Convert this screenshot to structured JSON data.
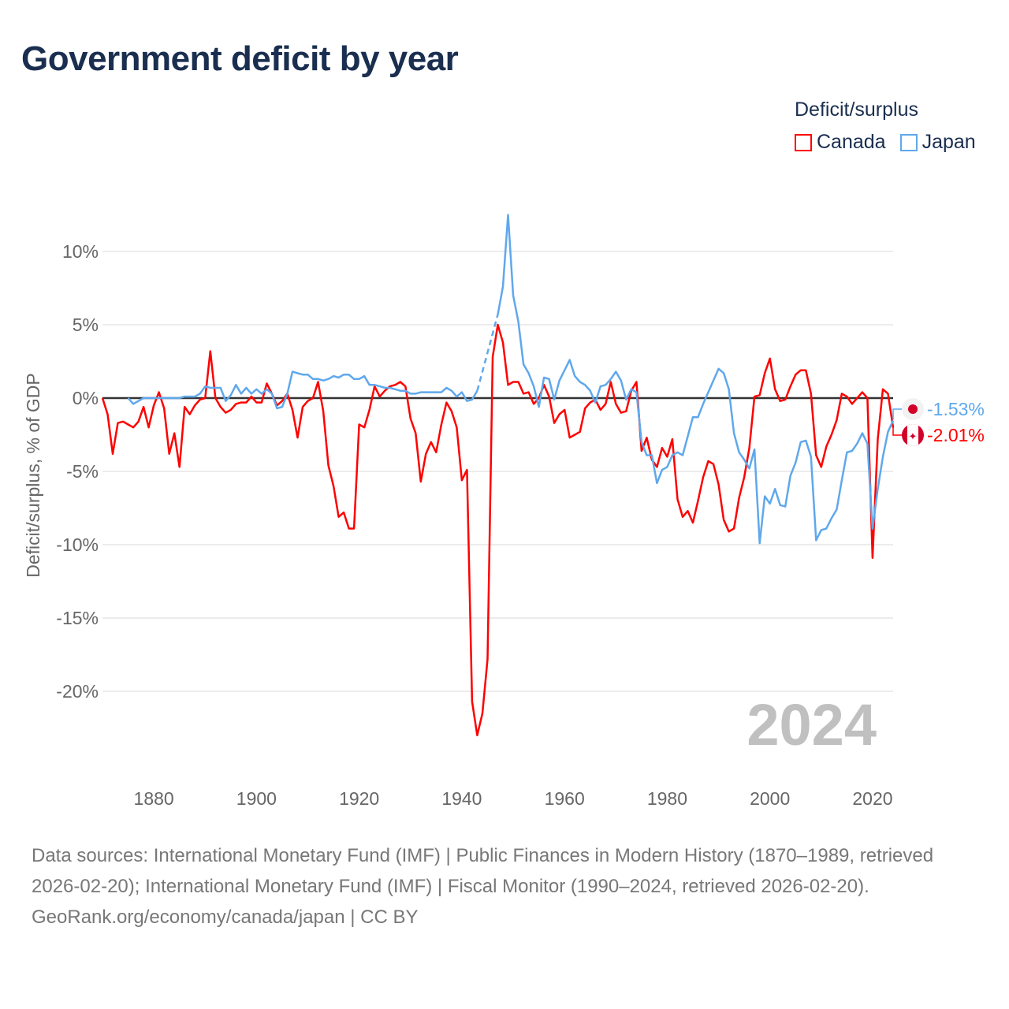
{
  "title": "Government deficit by year",
  "legend": {
    "title": "Deficit/surplus",
    "items": [
      {
        "label": "Canada",
        "color": "#ff0000"
      },
      {
        "label": "Japan",
        "color": "#5fa8ec"
      }
    ]
  },
  "year_label": "2024",
  "end_labels": {
    "japan": "-1.53%",
    "canada": "-2.01%"
  },
  "footer": {
    "sources": "Data sources: International Monetary Fund (IMF) | Public Finances in Modern History (1870–1989, retrieved 2026-02-20); International Monetary Fund (IMF) | Fiscal Monitor (1990–2024, retrieved 2026-02-20).",
    "credit": "GeoRank.org/economy/canada/japan | CC BY"
  },
  "chart_data": {
    "type": "line",
    "title": "Government deficit by year",
    "xlabel": "",
    "ylabel": "Deficit/surplus, % of GDP",
    "xlim": [
      1870,
      2024
    ],
    "ylim": [
      -25,
      13
    ],
    "x_ticks": [
      1880,
      1900,
      1920,
      1940,
      1960,
      1980,
      2000,
      2020
    ],
    "x_tick_labels": [
      "1880",
      "1900",
      "1920",
      "1940",
      "1960",
      "1980",
      "2000",
      "2020"
    ],
    "y_ticks": [
      10,
      5,
      0,
      -5,
      -10,
      -15,
      -20
    ],
    "y_tick_labels": [
      "10%",
      "5%",
      "0%",
      "-5%",
      "-10%",
      "-15%",
      "-20%"
    ],
    "grid": true,
    "legend_position": "top-right",
    "start_year": 1870,
    "series": [
      {
        "name": "Canada",
        "color": "#ff0000",
        "values": [
          0,
          -1.1,
          -3.8,
          -1.7,
          -1.6,
          -1.8,
          -2.0,
          -1.6,
          -0.6,
          -2.0,
          -0.5,
          0.4,
          -0.7,
          -3.8,
          -2.4,
          -4.7,
          -0.6,
          -1.1,
          -0.5,
          -0.1,
          0,
          3.2,
          0,
          -0.6,
          -1.0,
          -0.8,
          -0.4,
          -0.3,
          -0.3,
          0.1,
          -0.3,
          -0.3,
          1.0,
          0.3,
          -0.5,
          -0.2,
          0.3,
          -0.8,
          -2.7,
          -0.6,
          -0.2,
          0,
          1.1,
          -0.9,
          -4.6,
          -6.0,
          -8.1,
          -7.8,
          -8.9,
          -8.9,
          -1.8,
          -2.0,
          -0.8,
          0.8,
          0.1,
          0.5,
          0.8,
          0.9,
          1.1,
          0.8,
          -1.4,
          -2.4,
          -5.7,
          -3.8,
          -3.0,
          -3.7,
          -1.8,
          -0.3,
          -0.9,
          -2.0,
          -5.6,
          -4.9,
          -20.7,
          -23.0,
          -21.5,
          -17.8,
          2.8,
          5.0,
          3.8,
          0.9,
          1.1,
          1.1,
          0.3,
          0.4,
          -0.4,
          0,
          0.9,
          0.1,
          -1.7,
          -1.1,
          -0.8,
          -2.7,
          -2.5,
          -2.3,
          -0.7,
          -0.3,
          -0.1,
          -0.8,
          -0.4,
          1.1,
          -0.4,
          -1.0,
          -0.9,
          0.5,
          1.1,
          -3.6,
          -2.7,
          -4.2,
          -4.7,
          -3.4,
          -4.0,
          -2.8,
          -6.9,
          -8.1,
          -7.7,
          -8.5,
          -7.0,
          -5.4,
          -4.3,
          -4.5,
          -5.9,
          -8.3,
          -9.1,
          -8.9,
          -6.8,
          -5.4,
          -3.4,
          0.1,
          0.2,
          1.7,
          2.7,
          0.6,
          -0.2,
          -0.1,
          0.8,
          1.6,
          1.9,
          1.9,
          0.3,
          -3.9,
          -4.7,
          -3.3,
          -2.5,
          -1.5,
          0.3,
          0.1,
          -0.4,
          0,
          0.4,
          0.0,
          -10.9,
          -2.8,
          0.6,
          0.3,
          -2.01
        ]
      },
      {
        "name": "Japan",
        "color": "#5fa8ec",
        "values": [
          null,
          null,
          null,
          null,
          null,
          0,
          -0.4,
          -0.2,
          0,
          0,
          0,
          0,
          0,
          0,
          0,
          0,
          0.1,
          0.1,
          0.1,
          0.3,
          0.8,
          0.7,
          0.7,
          0.7,
          -0.2,
          0.2,
          0.9,
          0.3,
          0.7,
          0.3,
          0.6,
          0.3,
          0.6,
          0.3,
          -0.7,
          -0.6,
          0.3,
          1.8,
          1.7,
          1.6,
          1.6,
          1.3,
          1.3,
          1.2,
          1.3,
          1.5,
          1.4,
          1.6,
          1.6,
          1.3,
          1.3,
          1.5,
          0.9,
          0.9,
          0.8,
          0.7,
          0.7,
          0.6,
          0.5,
          0.5,
          0.3,
          0.3,
          0.4,
          0.4,
          0.4,
          0.4,
          0.4,
          0.7,
          0.5,
          0.1,
          0.4,
          -0.2,
          -0.1,
          0.5,
          null,
          null,
          null,
          5.7,
          7.6,
          12.5,
          7.0,
          5.2,
          2.3,
          1.7,
          0.8,
          -0.6,
          1.4,
          1.3,
          -0.1,
          1.2,
          1.9,
          2.6,
          1.5,
          1.1,
          0.9,
          0.5,
          -0.3,
          0.8,
          0.9,
          1.3,
          1.8,
          1.2,
          -0.1,
          0.6,
          0.4,
          -3.0,
          -3.9,
          -3.9,
          -5.8,
          -4.9,
          -4.7,
          -3.9,
          -3.7,
          -3.9,
          -2.6,
          -1.3,
          -1.3,
          -0.4,
          0.4,
          1.2,
          2.0,
          1.7,
          0.6,
          -2.4,
          -3.7,
          -4.2,
          -4.8,
          -3.5,
          -9.9,
          -6.7,
          -7.2,
          -6.2,
          -7.3,
          -7.4,
          -5.3,
          -4.4,
          -3.0,
          -2.9,
          -4.0,
          -9.7,
          -9.0,
          -8.9,
          -8.2,
          -7.6,
          -5.6,
          -3.7,
          -3.6,
          -3.1,
          -2.4,
          -3.1,
          -8.9,
          -6.2,
          -4.0,
          -2.3,
          -1.53
        ]
      }
    ]
  }
}
